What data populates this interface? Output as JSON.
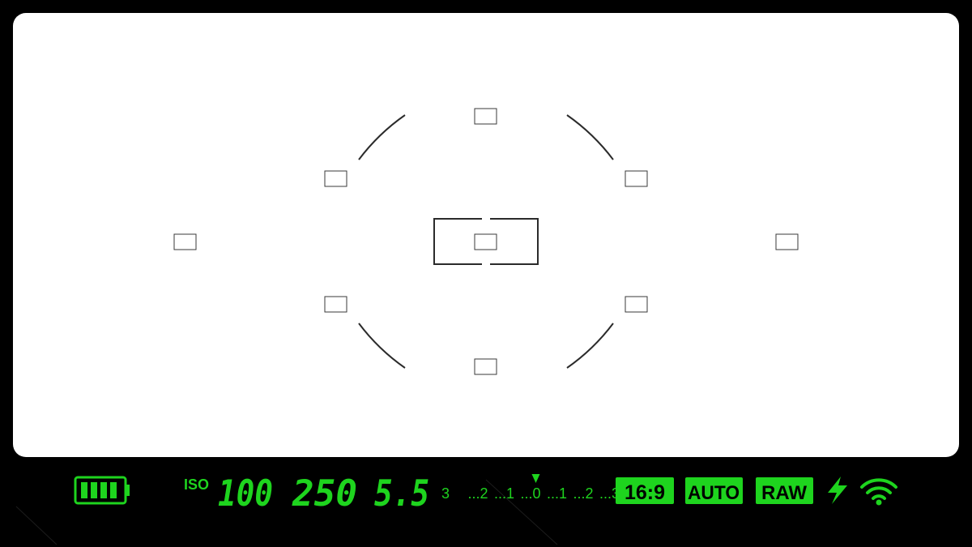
{
  "viewfinder": {
    "af_points": [
      {
        "id": "top"
      },
      {
        "id": "upper-left"
      },
      {
        "id": "upper-right"
      },
      {
        "id": "far-left"
      },
      {
        "id": "center"
      },
      {
        "id": "far-right"
      },
      {
        "id": "lower-left"
      },
      {
        "id": "lower-right"
      },
      {
        "id": "bottom"
      }
    ]
  },
  "info_bar": {
    "battery_level": 1.0,
    "iso_label": "ISO",
    "iso_value": "100",
    "shutter_speed": "250",
    "aperture": "5.5",
    "exposure_scale": [
      "3",
      "...2",
      "...1",
      "...0",
      "...1",
      "...2",
      "...3"
    ],
    "exposure_value": 0,
    "aspect_ratio": "16:9",
    "mode": "AUTO",
    "format": "RAW",
    "icons": [
      "battery-icon",
      "flash-icon",
      "wifi-icon"
    ],
    "accent_color": "#1ed41e"
  }
}
